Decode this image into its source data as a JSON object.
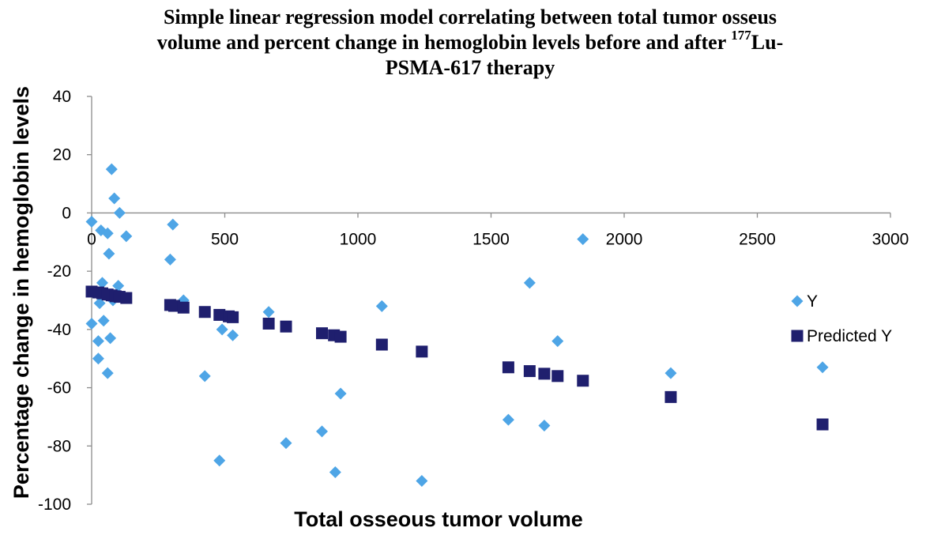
{
  "chart_data": {
    "type": "scatter",
    "title": {
      "line1": "Simple linear regression model correlating between total tumor osseus",
      "line2_prefix": "volume and percent change in hemoglobin levels before and after ",
      "line2_sup": "177",
      "line2_suffix": "Lu-",
      "line3": "PSMA-617 therapy"
    },
    "xlabel": "Total osseous tumor volume",
    "ylabel": "Percentage change in hemoglobin levels",
    "xlim": [
      0,
      3000
    ],
    "ylim": [
      -100,
      40
    ],
    "x_ticks": [
      0,
      500,
      1000,
      1500,
      2000,
      2500,
      3000
    ],
    "y_ticks": [
      40,
      20,
      0,
      -20,
      -40,
      -60,
      -80,
      -100
    ],
    "grid": false,
    "legend_position": "right",
    "series": [
      {
        "name": "Y",
        "marker": "diamond",
        "color": "#4ea5e6",
        "points": [
          [
            0,
            -3
          ],
          [
            0,
            -38
          ],
          [
            25,
            -44
          ],
          [
            25,
            -50
          ],
          [
            30,
            -31
          ],
          [
            35,
            -6
          ],
          [
            40,
            -24
          ],
          [
            45,
            -37
          ],
          [
            60,
            -7
          ],
          [
            60,
            -55
          ],
          [
            65,
            -14
          ],
          [
            70,
            -43
          ],
          [
            75,
            15
          ],
          [
            80,
            -30
          ],
          [
            85,
            5
          ],
          [
            100,
            -25
          ],
          [
            105,
            0
          ],
          [
            130,
            -8
          ],
          [
            295,
            -16
          ],
          [
            305,
            -4
          ],
          [
            345,
            -30
          ],
          [
            425,
            -56
          ],
          [
            480,
            -85
          ],
          [
            490,
            -40
          ],
          [
            530,
            -42
          ],
          [
            665,
            -34
          ],
          [
            730,
            -79
          ],
          [
            865,
            -75
          ],
          [
            915,
            -89
          ],
          [
            935,
            -62
          ],
          [
            1090,
            -32
          ],
          [
            1240,
            -92
          ],
          [
            1565,
            -71
          ],
          [
            1645,
            -24
          ],
          [
            1700,
            -73
          ],
          [
            1750,
            -44
          ],
          [
            1845,
            -9
          ],
          [
            2175,
            -55
          ],
          [
            2745,
            -53
          ]
        ]
      },
      {
        "name": "Predicted Y",
        "marker": "square",
        "color": "#1f1f6e",
        "points": [
          [
            0,
            -27
          ],
          [
            25,
            -27.3
          ],
          [
            40,
            -27.6
          ],
          [
            60,
            -28
          ],
          [
            75,
            -28.3
          ],
          [
            90,
            -28.6
          ],
          [
            105,
            -28.8
          ],
          [
            130,
            -29.2
          ],
          [
            295,
            -31.6
          ],
          [
            310,
            -31.9
          ],
          [
            345,
            -32.5
          ],
          [
            425,
            -34
          ],
          [
            480,
            -35
          ],
          [
            515,
            -35.5
          ],
          [
            530,
            -35.8
          ],
          [
            665,
            -38
          ],
          [
            730,
            -39
          ],
          [
            865,
            -41.3
          ],
          [
            910,
            -42
          ],
          [
            935,
            -42.5
          ],
          [
            1090,
            -45.2
          ],
          [
            1240,
            -47.6
          ],
          [
            1565,
            -53
          ],
          [
            1645,
            -54.3
          ],
          [
            1700,
            -55.2
          ],
          [
            1750,
            -56
          ],
          [
            1845,
            -57.6
          ],
          [
            2175,
            -63.2
          ],
          [
            2745,
            -72.6
          ]
        ]
      }
    ]
  }
}
